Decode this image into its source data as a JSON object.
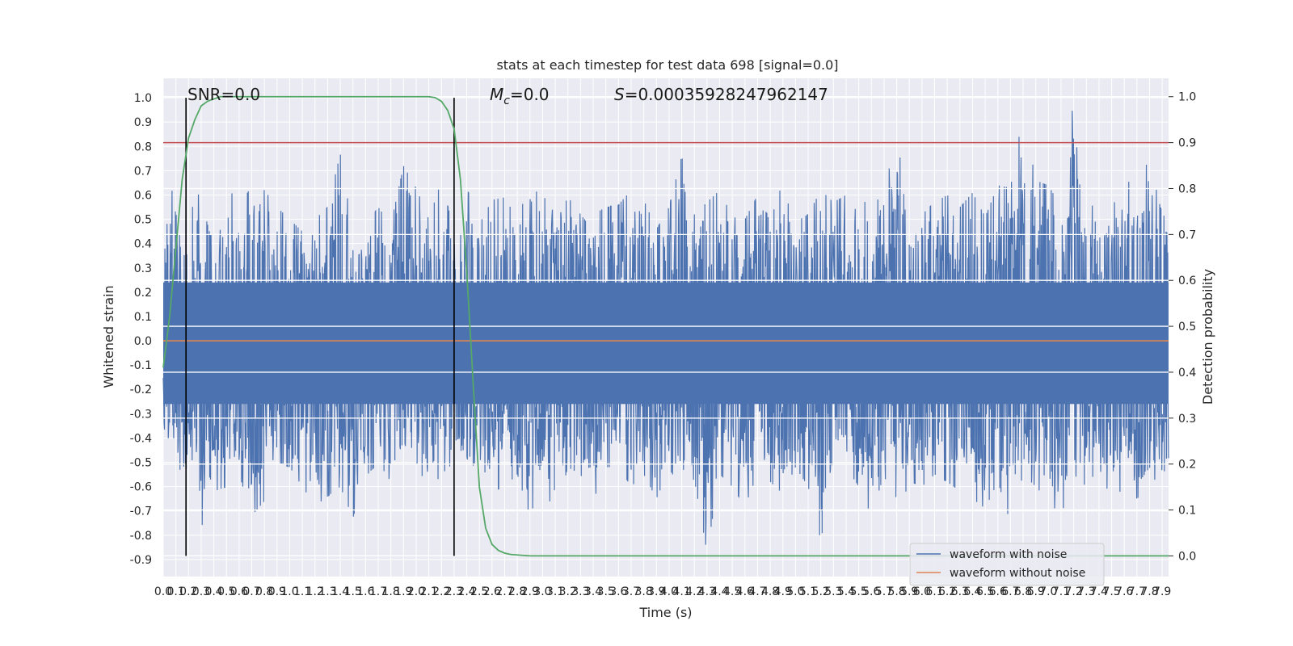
{
  "chart_data": {
    "type": "line",
    "title": "stats at each timestep for test data 698 [signal=0.0]",
    "xlabel": "Time (s)",
    "ylabel": "Whitened strain",
    "ylabel_right": "Detection probability",
    "xlim": [
      0.0,
      7.95
    ],
    "ylim": [
      -0.97,
      1.08
    ],
    "ylim_right": [
      -0.045,
      1.04
    ],
    "x_ticks": [
      0.0,
      0.1,
      0.2,
      0.3,
      0.4,
      0.5,
      0.6,
      0.7,
      0.8,
      0.9,
      1.0,
      1.1,
      1.2,
      1.3,
      1.4,
      1.5,
      1.6,
      1.7,
      1.8,
      1.9,
      2.0,
      2.1,
      2.2,
      2.3,
      2.4,
      2.5,
      2.6,
      2.7,
      2.8,
      2.9,
      3.0,
      3.1,
      3.2,
      3.3,
      3.4,
      3.5,
      3.6,
      3.7,
      3.8,
      3.9,
      4.0,
      4.1,
      4.2,
      4.3,
      4.4,
      4.5,
      4.6,
      4.7,
      4.8,
      4.9,
      5.0,
      5.1,
      5.2,
      5.3,
      5.4,
      5.5,
      5.6,
      5.7,
      5.8,
      5.9,
      6.0,
      6.1,
      6.2,
      6.3,
      6.4,
      6.5,
      6.6,
      6.7,
      6.8,
      6.9,
      7.0,
      7.1,
      7.2,
      7.3,
      7.4,
      7.5,
      7.6,
      7.7,
      7.8,
      7.9
    ],
    "y_ticks_left": [
      "1.0",
      "0.9",
      "0.8",
      "0.7",
      "0.6",
      "0.5",
      "0.4",
      "0.3",
      "0.2",
      "0.1",
      "0.0",
      "-0.1",
      "-0.2",
      "-0.3",
      "-0.4",
      "-0.5",
      "-0.6",
      "-0.7",
      "-0.8",
      "-0.9"
    ],
    "y_ticks_right": [
      "1.0",
      "0.9",
      "0.8",
      "0.7",
      "0.6",
      "0.5",
      "0.4",
      "0.3",
      "0.2",
      "0.1",
      "0.0"
    ],
    "annotations": {
      "snr": "SNR=0.0",
      "mc_symbol": "M",
      "mc_sub": "c",
      "mc_value": "=0.0",
      "s_symbol": "S",
      "s_value": "=0.00035928247962147"
    },
    "threshold": {
      "y_right": 0.9,
      "color": "#c44e52"
    },
    "vertical_markers": [
      0.18,
      2.3
    ],
    "series": [
      {
        "name": "waveform with noise",
        "axis": "left",
        "color": "#4c72b0",
        "envelope": {
          "x": [
            0.0,
            0.05,
            0.1,
            0.15,
            0.2,
            0.25,
            0.3,
            0.4,
            0.5,
            0.6,
            0.7,
            0.8,
            0.9,
            1.0,
            1.1,
            1.2,
            1.3,
            1.4,
            1.5,
            1.6,
            1.7,
            1.8,
            1.9,
            2.0,
            2.1,
            2.2,
            2.3,
            2.4,
            2.5,
            2.6,
            2.7,
            2.8,
            2.9,
            3.0,
            3.1,
            3.2,
            3.3,
            3.4,
            3.5,
            3.6,
            3.7,
            3.8,
            3.9,
            4.0,
            4.1,
            4.2,
            4.3,
            4.4,
            4.5,
            4.6,
            4.7,
            4.8,
            4.9,
            5.0,
            5.1,
            5.2,
            5.3,
            5.4,
            5.5,
            5.6,
            5.7,
            5.8,
            5.9,
            6.0,
            6.1,
            6.2,
            6.3,
            6.4,
            6.5,
            6.6,
            6.7,
            6.8,
            6.9,
            7.0,
            7.1,
            7.2,
            7.3,
            7.4,
            7.5,
            7.6,
            7.7,
            7.8,
            7.9,
            7.95
          ],
          "upper": [
            0.52,
            0.68,
            0.52,
            0.48,
            0.66,
            0.63,
            0.58,
            0.38,
            0.65,
            0.55,
            0.64,
            0.62,
            0.55,
            0.5,
            0.45,
            0.5,
            0.55,
            0.77,
            0.45,
            0.47,
            0.55,
            0.48,
            0.72,
            0.63,
            0.5,
            0.66,
            0.45,
            0.63,
            0.48,
            0.58,
            0.59,
            0.5,
            0.65,
            0.58,
            0.62,
            0.57,
            0.61,
            0.52,
            0.55,
            0.56,
            0.62,
            0.58,
            0.46,
            0.55,
            0.76,
            0.52,
            0.57,
            0.62,
            0.51,
            0.5,
            0.6,
            0.61,
            0.62,
            0.49,
            0.52,
            0.62,
            0.57,
            0.6,
            0.62,
            0.52,
            0.64,
            0.81,
            0.6,
            0.52,
            0.57,
            0.6,
            0.55,
            0.61,
            0.51,
            0.64,
            0.63,
            0.94,
            0.66,
            0.64,
            0.55,
            1.0,
            0.58,
            0.53,
            0.55,
            0.64,
            0.68,
            0.74,
            0.52,
            0.5
          ],
          "lower": [
            -0.42,
            -0.47,
            -0.57,
            -0.73,
            -0.52,
            -0.47,
            -0.77,
            -0.62,
            -0.6,
            -0.55,
            -0.72,
            -0.66,
            -0.5,
            -0.52,
            -0.6,
            -0.68,
            -0.64,
            -0.6,
            -0.73,
            -0.56,
            -0.5,
            -0.58,
            -0.48,
            -0.5,
            -0.62,
            -0.55,
            -0.5,
            -0.55,
            -0.48,
            -0.62,
            -0.6,
            -0.55,
            -0.72,
            -0.58,
            -0.72,
            -0.52,
            -0.55,
            -0.66,
            -0.52,
            -0.52,
            -0.6,
            -0.55,
            -0.65,
            -0.53,
            -0.6,
            -0.57,
            -0.87,
            -0.55,
            -0.6,
            -0.68,
            -0.55,
            -0.58,
            -0.63,
            -0.52,
            -0.6,
            -0.82,
            -0.55,
            -0.52,
            -0.6,
            -0.72,
            -0.55,
            -0.73,
            -0.58,
            -0.6,
            -0.55,
            -0.58,
            -0.62,
            -0.65,
            -0.69,
            -0.58,
            -0.75,
            -0.55,
            -0.6,
            -0.66,
            -0.72,
            -0.55,
            -0.6,
            -0.52,
            -0.66,
            -0.6,
            -0.65,
            -0.6,
            -0.53,
            -0.55
          ]
        }
      },
      {
        "name": "waveform without noise",
        "axis": "left",
        "color": "#dd8452",
        "x": [
          0.0,
          7.95
        ],
        "y": [
          0.0,
          0.0
        ]
      },
      {
        "name": "",
        "axis": "right",
        "color": "#55a868",
        "x": [
          0.0,
          0.05,
          0.1,
          0.15,
          0.2,
          0.25,
          0.3,
          0.35,
          0.4,
          0.45,
          0.5,
          0.6,
          0.8,
          1.0,
          1.5,
          2.0,
          2.1,
          2.15,
          2.2,
          2.25,
          2.3,
          2.35,
          2.4,
          2.45,
          2.5,
          2.55,
          2.6,
          2.65,
          2.7,
          2.75,
          2.8,
          2.85,
          2.9,
          3.0,
          3.2,
          3.5,
          4.0,
          5.0,
          6.0,
          7.0,
          7.95
        ],
        "y": [
          0.41,
          0.52,
          0.67,
          0.82,
          0.91,
          0.95,
          0.98,
          0.99,
          0.995,
          1.0,
          1.0,
          1.0,
          1.0,
          1.0,
          1.0,
          1.0,
          1.0,
          0.998,
          0.99,
          0.97,
          0.93,
          0.82,
          0.62,
          0.38,
          0.15,
          0.06,
          0.025,
          0.012,
          0.006,
          0.003,
          0.002,
          0.001,
          0.0,
          0.0,
          0.0,
          0.0,
          0.0,
          0.0,
          0.0,
          0.0,
          0.0
        ]
      }
    ],
    "legend": {
      "position": "lower-right",
      "entries": [
        {
          "label": "waveform with noise",
          "color": "#4c72b0"
        },
        {
          "label": "waveform without noise",
          "color": "#dd8452"
        }
      ]
    },
    "grid": true,
    "colors": {
      "plot_bg": "#eaeaf2",
      "grid": "#ffffff",
      "marker": "#000000"
    }
  }
}
